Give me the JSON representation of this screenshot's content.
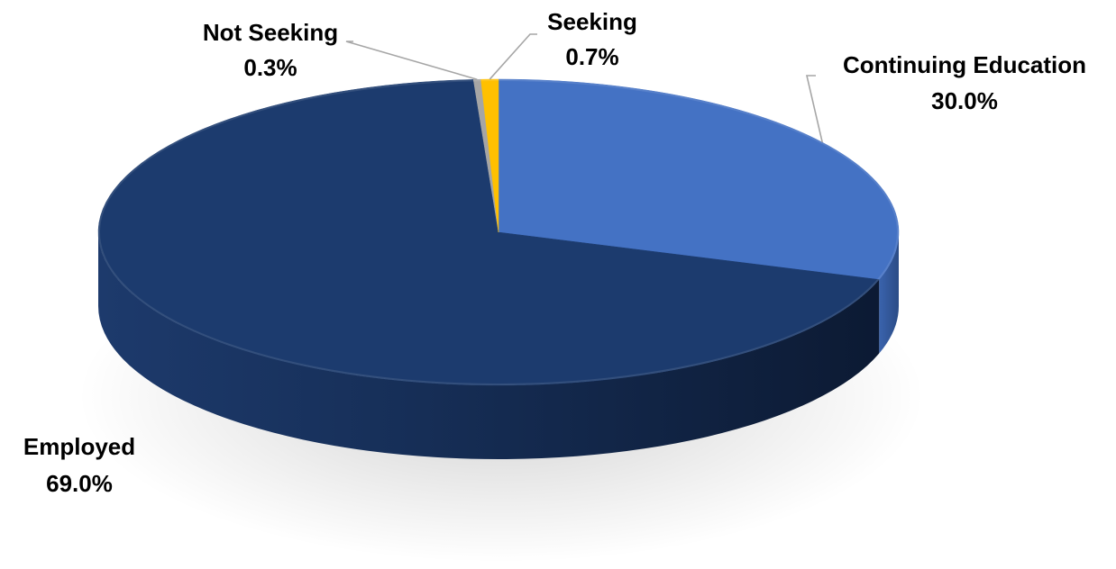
{
  "chart_data": {
    "type": "pie",
    "style": "3d",
    "title": "",
    "categories": [
      "Continuing Education",
      "Employed",
      "Not Seeking",
      "Seeking"
    ],
    "values": [
      30.0,
      69.0,
      0.3,
      0.7
    ],
    "value_labels": [
      "30.0%",
      "69.0%",
      "0.3%",
      "0.7%"
    ],
    "colors": [
      "#4472C4",
      "#1C3B6E",
      "#A5A5A5",
      "#FFC000"
    ],
    "legend": "none",
    "data_labels": "outside with leader lines"
  }
}
